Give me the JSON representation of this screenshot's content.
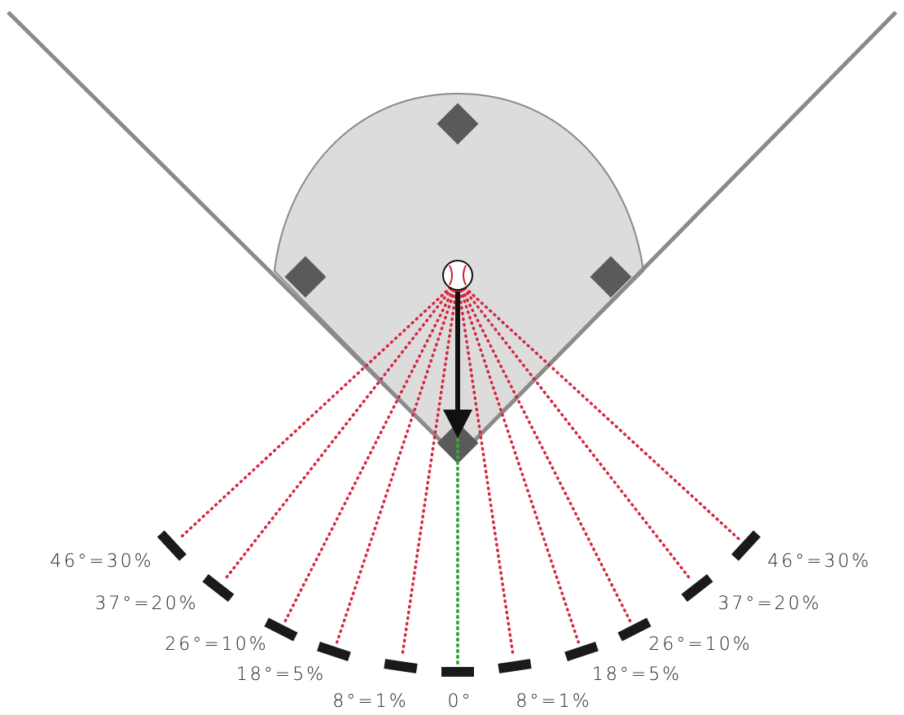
{
  "labels": [
    "46°=30%",
    "37°=20%",
    "26°=10%",
    "18°=5%",
    "8°=1%",
    "0°",
    "8°=1%",
    "18°=5%",
    "26°=10%",
    "37°=20%",
    "46°=30%"
  ]
}
